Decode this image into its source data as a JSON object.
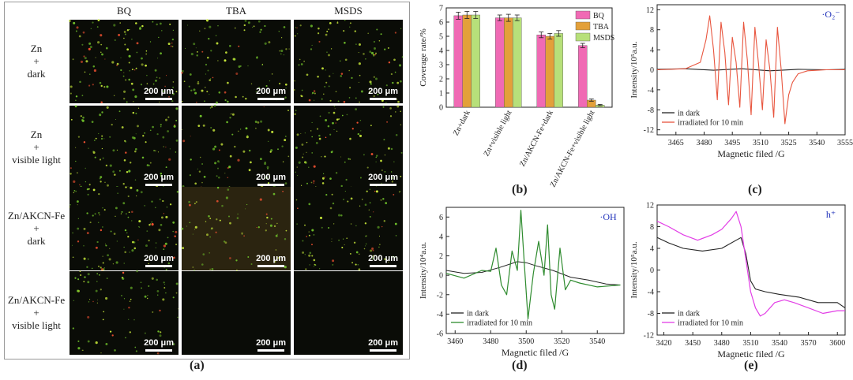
{
  "panel_a": {
    "letter": "(a)",
    "columns": [
      "BQ",
      "TBA",
      "MSDS"
    ],
    "rows": [
      {
        "lines": [
          "Zn",
          "+",
          "dark"
        ]
      },
      {
        "lines": [
          "Zn",
          "+",
          "visible light"
        ]
      },
      {
        "lines": [
          "Zn/AKCN-Fe",
          "+",
          "dark"
        ]
      },
      {
        "lines": [
          "Zn/AKCN-Fe",
          "+",
          "visible light"
        ]
      }
    ],
    "scale_label": "200 μm",
    "density": [
      [
        0.9,
        0.7,
        0.8
      ],
      [
        0.8,
        0.6,
        0.8
      ],
      [
        0.9,
        0.5,
        0.7
      ],
      [
        0.6,
        0.0,
        0.0
      ]
    ]
  },
  "panel_letters": {
    "b": "(b)",
    "c": "(c)",
    "d": "(d)",
    "e": "(e)"
  },
  "colors": {
    "BQ": "#f06ab4",
    "TBA": "#e3a03a",
    "MSDS": "#b7e07a",
    "dark": "#222222",
    "c_irr": "#e8553e",
    "d_irr": "#2e8b2e",
    "e_irr": "#e23ee6"
  },
  "chart_data": [
    {
      "id": "b",
      "type": "bar",
      "ylabel": "Coverage rate/%",
      "ylim": [
        0,
        7
      ],
      "yticks": [
        0,
        1,
        2,
        3,
        4,
        5,
        6,
        7
      ],
      "categories": [
        "Zn+dark",
        "Zn+visible light",
        "Zn/AKCN-Fe+dark",
        "Zn/AKCN-Fe+visible light"
      ],
      "series": [
        {
          "name": "BQ",
          "values": [
            6.45,
            6.3,
            5.1,
            4.35
          ],
          "errors": [
            0.25,
            0.2,
            0.2,
            0.15
          ]
        },
        {
          "name": "TBA",
          "values": [
            6.5,
            6.3,
            5.0,
            0.5
          ],
          "errors": [
            0.25,
            0.25,
            0.2,
            0.08
          ]
        },
        {
          "name": "MSDS",
          "values": [
            6.5,
            6.3,
            5.2,
            0.15
          ],
          "errors": [
            0.25,
            0.2,
            0.2,
            0.05
          ]
        }
      ],
      "legend": "top-right"
    },
    {
      "id": "c",
      "type": "line",
      "xlabel": "Magnetic filed /G",
      "ylabel": "Intensity/10⁵a.u.",
      "xlim": [
        3455,
        3555
      ],
      "ylim": [
        -13,
        13
      ],
      "xticks": [
        3465,
        3480,
        3495,
        3510,
        3525,
        3540,
        3555
      ],
      "yticks": [
        -12,
        -8,
        -4,
        0,
        4,
        8,
        12
      ],
      "annotation": "·O₂⁻",
      "series": [
        {
          "name": "in dark",
          "x": [
            3455,
            3470,
            3485,
            3500,
            3515,
            3530,
            3545,
            3555
          ],
          "y": [
            0.1,
            0.2,
            -0.1,
            0.2,
            -0.2,
            0.1,
            0.0,
            0.1
          ]
        },
        {
          "name": "irradiated for 10 min",
          "x": [
            3455,
            3470,
            3478,
            3481,
            3483,
            3485,
            3487,
            3489,
            3491,
            3493,
            3495,
            3497,
            3499,
            3501,
            3503,
            3505,
            3507,
            3509,
            3511,
            3513,
            3515,
            3517,
            3519,
            3521,
            3523,
            3525,
            3527,
            3530,
            3535,
            3545,
            3555
          ],
          "y": [
            0,
            0.2,
            1.5,
            6,
            10.8,
            4,
            -6,
            9.5,
            3.5,
            -7,
            6.5,
            1.5,
            -7.5,
            9.5,
            2,
            -9,
            8.5,
            1,
            -8,
            6,
            0,
            -9.5,
            8.5,
            0,
            -10.8,
            -5,
            -2.5,
            -0.8,
            -0.2,
            0,
            0
          ]
        }
      ],
      "legend": "bottom-left"
    },
    {
      "id": "d",
      "type": "line",
      "xlabel": "Magnetic filed /G",
      "ylabel": "Intensity/10⁴a.u.",
      "xlim": [
        3455,
        3555
      ],
      "ylim": [
        -6,
        7
      ],
      "xticks": [
        3460,
        3480,
        3500,
        3520,
        3540
      ],
      "yticks": [
        -6,
        -4,
        -2,
        0,
        2,
        4,
        6
      ],
      "annotation": "·OH",
      "series": [
        {
          "name": "in dark",
          "x": [
            3455,
            3465,
            3475,
            3485,
            3495,
            3500,
            3505,
            3515,
            3525,
            3535,
            3545,
            3553
          ],
          "y": [
            0.5,
            0.2,
            0.3,
            0.8,
            1.4,
            1.3,
            1.0,
            0.5,
            -0.2,
            -0.5,
            -0.9,
            -1.0
          ]
        },
        {
          "name": "irradiated for 10 min",
          "x": [
            3455,
            3465,
            3475,
            3480,
            3483,
            3486,
            3489,
            3492,
            3495,
            3497,
            3499,
            3501,
            3504,
            3507,
            3510,
            3512,
            3514,
            3516,
            3519,
            3522,
            3525,
            3530,
            3540,
            3553
          ],
          "y": [
            0.2,
            -0.3,
            0.5,
            0.4,
            2.8,
            -1.0,
            -2.0,
            2.5,
            0.5,
            6.7,
            1.0,
            -4.5,
            0.2,
            3.5,
            0.0,
            5.2,
            -2.0,
            -3.5,
            2.8,
            -1.5,
            -0.5,
            -0.8,
            -1.2,
            -1.0
          ]
        }
      ],
      "legend": "bottom-left"
    },
    {
      "id": "e",
      "type": "line",
      "xlabel": "Magnetic filed /G",
      "ylabel": "Intensity/10⁵a.u.",
      "xlim": [
        3413,
        3608
      ],
      "ylim": [
        -12,
        12
      ],
      "xticks": [
        3420,
        3450,
        3480,
        3510,
        3540,
        3570,
        3600
      ],
      "yticks": [
        -12,
        -8,
        -4,
        0,
        4,
        8,
        12
      ],
      "annotation": "h⁺",
      "series": [
        {
          "name": "in dark",
          "x": [
            3413,
            3425,
            3440,
            3460,
            3480,
            3495,
            3500,
            3505,
            3510,
            3515,
            3525,
            3540,
            3560,
            3580,
            3600,
            3608
          ],
          "y": [
            6.0,
            5.0,
            4.0,
            3.5,
            4.0,
            5.5,
            6.0,
            3.0,
            -2.0,
            -3.5,
            -4.0,
            -4.5,
            -5.0,
            -6.0,
            -6.0,
            -7.0
          ]
        },
        {
          "name": "irradiated for 10 min",
          "x": [
            3413,
            3425,
            3440,
            3455,
            3470,
            3480,
            3490,
            3495,
            3500,
            3505,
            3510,
            3515,
            3520,
            3525,
            3535,
            3545,
            3555,
            3570,
            3585,
            3600,
            3608
          ],
          "y": [
            9.0,
            8.0,
            6.5,
            5.5,
            6.5,
            7.5,
            9.5,
            10.8,
            8.0,
            2.0,
            -4.0,
            -7.0,
            -8.5,
            -8.0,
            -6.0,
            -5.5,
            -6.0,
            -7.0,
            -8.0,
            -7.5,
            -7.5
          ]
        }
      ],
      "legend": "bottom-left"
    }
  ]
}
